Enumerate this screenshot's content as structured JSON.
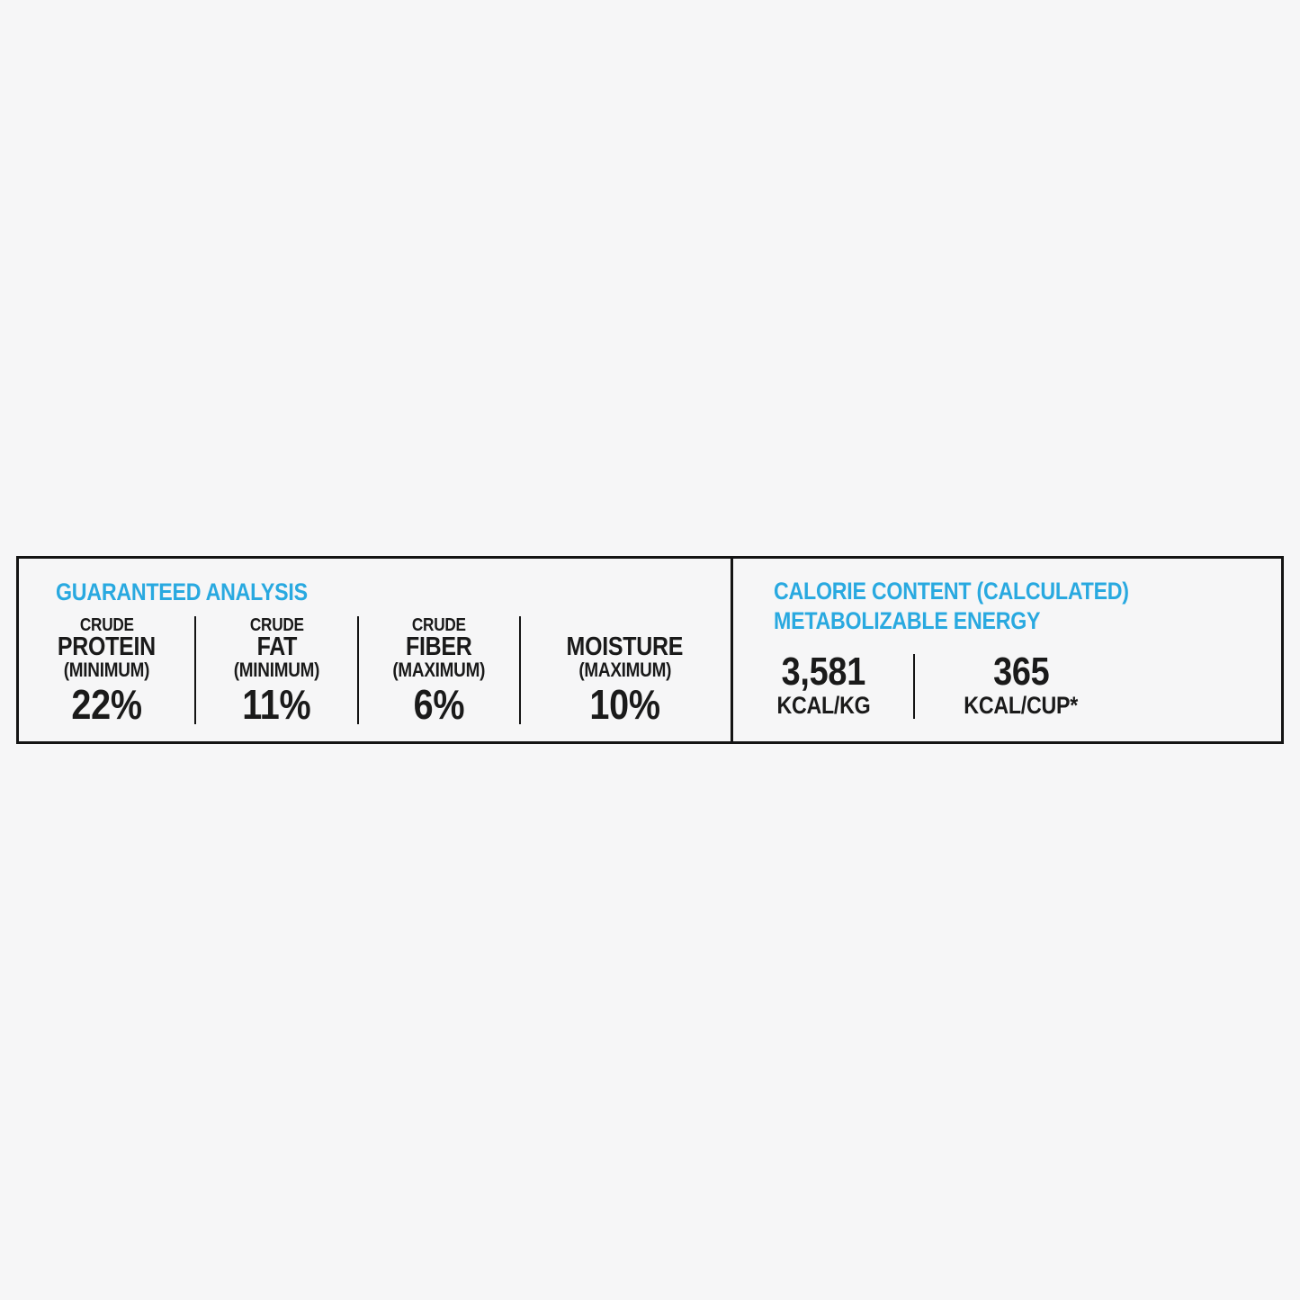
{
  "guaranteed_analysis": {
    "title": "GUARANTEED ANALYSIS",
    "nutrients": [
      {
        "prefix": "CRUDE",
        "name": "PROTEIN",
        "qualifier": "(MINIMUM)",
        "value": "22%"
      },
      {
        "prefix": "CRUDE",
        "name": "FAT",
        "qualifier": "(MINIMUM)",
        "value": "11%"
      },
      {
        "prefix": "CRUDE",
        "name": "FIBER",
        "qualifier": "(MAXIMUM)",
        "value": "6%"
      },
      {
        "prefix": "",
        "name": "MOISTURE",
        "qualifier": "(MAXIMUM)",
        "value": "10%"
      }
    ]
  },
  "calorie_content": {
    "title_line1": "CALORIE CONTENT (CALCULATED)",
    "title_line2": "METABOLIZABLE ENERGY",
    "entries": [
      {
        "value": "3,581",
        "unit": "KCAL/KG"
      },
      {
        "value": "365",
        "unit": "KCAL/CUP*"
      }
    ]
  },
  "colors": {
    "accent_blue": "#29A9E0",
    "text_black": "#1A1A1A",
    "background": "#F6F6F7",
    "border_black": "#141414"
  }
}
